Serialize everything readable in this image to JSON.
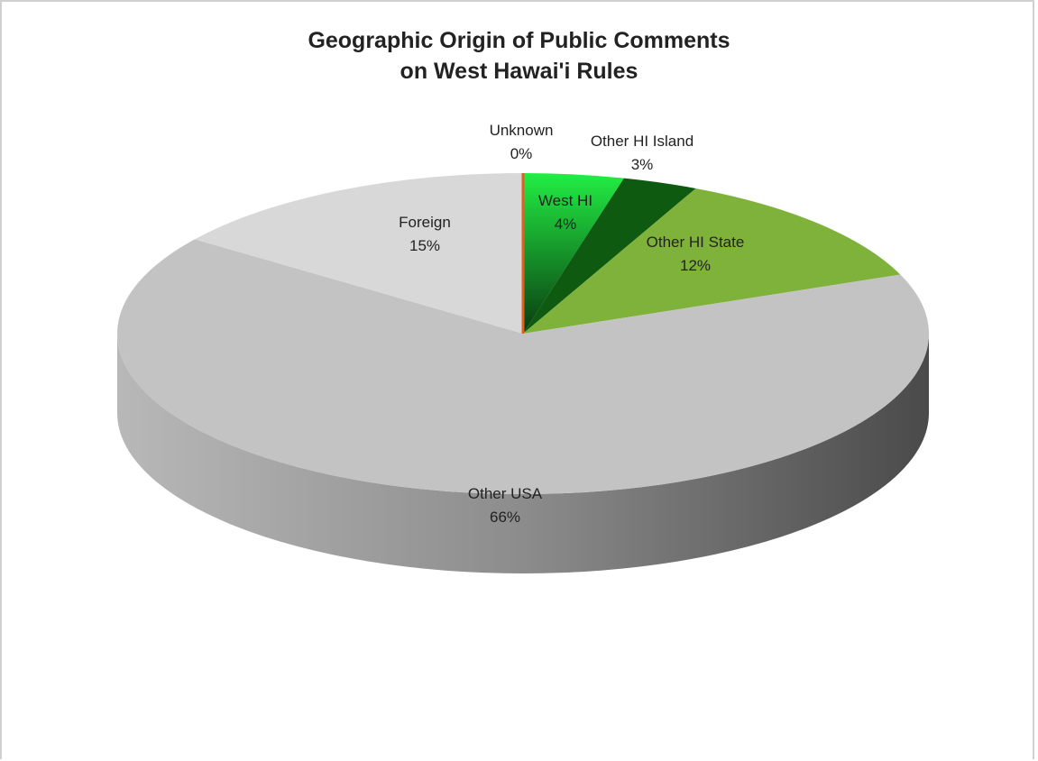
{
  "chart_data": {
    "type": "pie",
    "title": [
      "Geographic Origin of Public Comments",
      "on West Hawai'i Rules"
    ],
    "slices": [
      {
        "label": "West HI",
        "value": 4,
        "pct_label": "4%",
        "color": "#22dd44"
      },
      {
        "label": "Other HI Island",
        "value": 3,
        "pct_label": "3%",
        "color": "#0d5a10"
      },
      {
        "label": "Other HI State",
        "value": 12,
        "pct_label": "12%",
        "color": "#7fb23a"
      },
      {
        "label": "Other USA",
        "value": 66,
        "pct_label": "66%",
        "color": "#c3c3c3"
      },
      {
        "label": "Foreign",
        "value": 15,
        "pct_label": "15%",
        "color": "#d8d8d8"
      },
      {
        "label": "Unknown",
        "value": 0,
        "pct_label": "0%",
        "color": "#e06020"
      }
    ],
    "legend": "none",
    "style": "3d-pie"
  }
}
